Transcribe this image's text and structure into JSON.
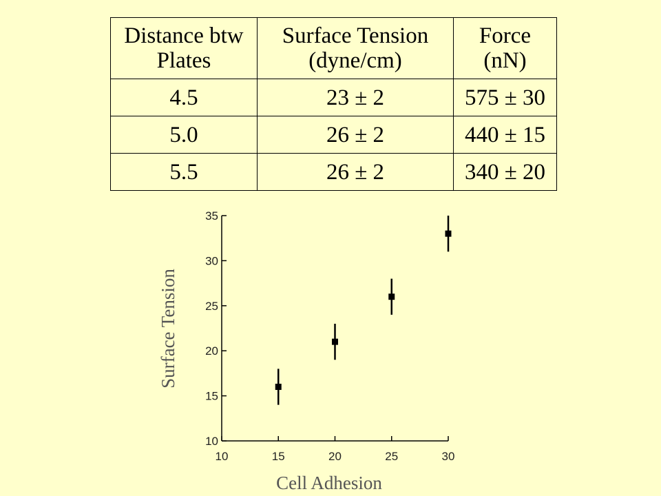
{
  "table": {
    "headers": [
      [
        "Distance btw",
        "Plates"
      ],
      [
        "Surface Tension",
        "(dyne/cm)"
      ],
      [
        "Force",
        "(nN)"
      ]
    ],
    "rows": [
      [
        "4.5",
        "23 ± 2",
        "575 ± 30"
      ],
      [
        "5.0",
        "26 ± 2",
        "440 ± 15"
      ],
      [
        "5.5",
        "26 ± 2",
        "340 ± 20"
      ]
    ]
  },
  "chart_data": {
    "type": "scatter",
    "title": "",
    "xlabel": "Cell Adhesion",
    "ylabel": "Surface Tension",
    "xlim": [
      10,
      30
    ],
    "ylim": [
      10,
      35
    ],
    "xticks": [
      10,
      15,
      20,
      25,
      30
    ],
    "yticks": [
      10,
      15,
      20,
      25,
      30,
      35
    ],
    "grid": false,
    "series": [
      {
        "points": [
          {
            "x": 15,
            "y": 16,
            "err": 2
          },
          {
            "x": 20,
            "y": 21,
            "err": 2
          },
          {
            "x": 25,
            "y": 26,
            "err": 2
          },
          {
            "x": 30,
            "y": 33,
            "err": 2
          }
        ],
        "color": "#000000",
        "marker": "square"
      }
    ]
  }
}
